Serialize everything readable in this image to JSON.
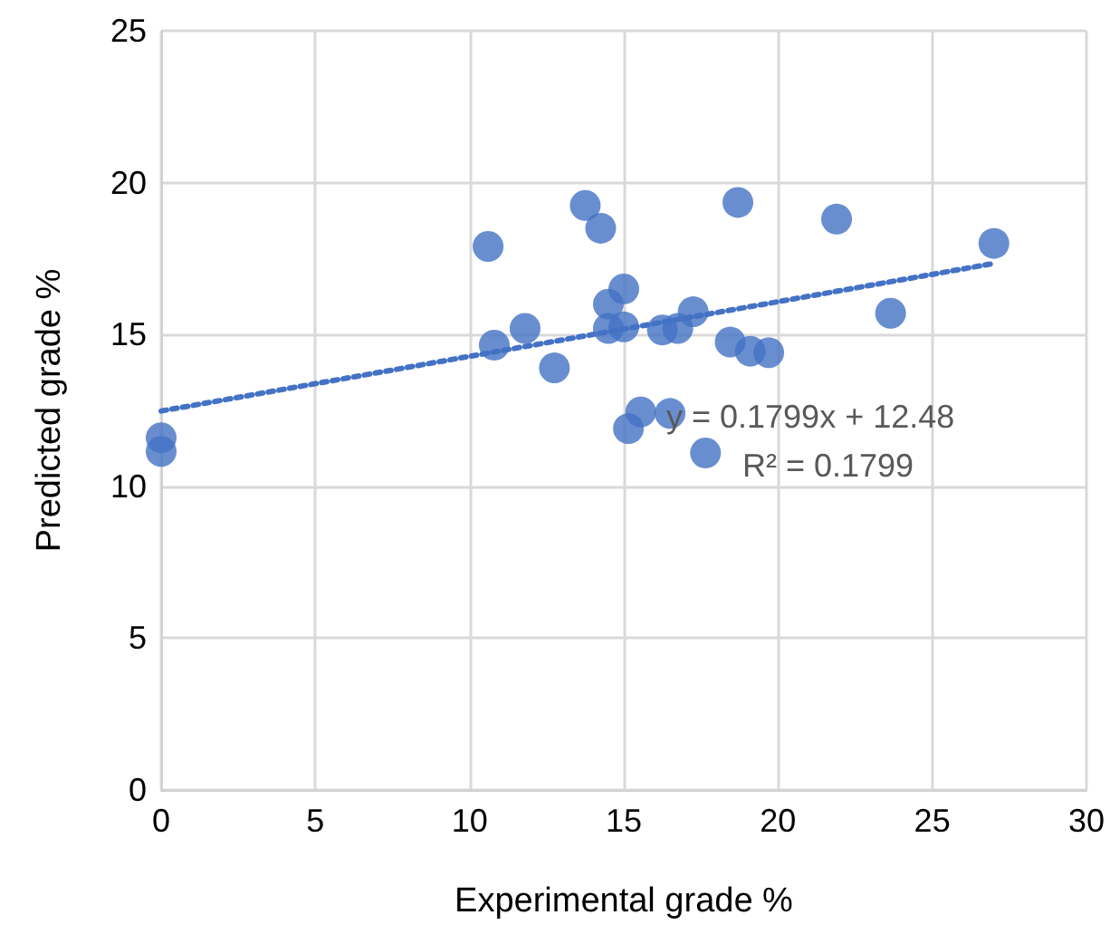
{
  "chart_data": {
    "type": "scatter",
    "xlabel": "Experimental grade %",
    "ylabel": "Predicted grade %",
    "xlim": [
      0,
      30
    ],
    "xticks": [
      0,
      5,
      10,
      15,
      20,
      25,
      30
    ],
    "ylim": [
      0,
      25
    ],
    "yticks": [
      0,
      5,
      10,
      15,
      20,
      25
    ],
    "grid": true,
    "marker": "circle",
    "series": [
      {
        "color": "#4472c4",
        "x": [
          0,
          0,
          10.6,
          10.8,
          11.8,
          12.75,
          13.75,
          14.25,
          14.5,
          14.5,
          15,
          15,
          15.15,
          15.55,
          16.25,
          16.5,
          16.75,
          17.25,
          17.65,
          18.45,
          18.7,
          19.1,
          19.7,
          21.9,
          23.65,
          27
        ],
        "values": [
          11.6,
          11.15,
          17.9,
          14.65,
          15.2,
          13.9,
          19.25,
          18.5,
          16,
          15.2,
          16.5,
          15.25,
          11.9,
          12.45,
          15.15,
          12.4,
          15.2,
          15.75,
          11.1,
          14.75,
          19.35,
          14.45,
          14.4,
          18.8,
          15.7,
          18
        ]
      },
      {
        "type": "line",
        "color": "#4472c4",
        "line_style": "dotted",
        "marker": "none",
        "x": [
          0,
          27
        ],
        "values": [
          12.48,
          17.34
        ]
      }
    ],
    "annotations": [
      "y = 0.1799x + 12.48",
      "R² = 0.1799"
    ]
  }
}
